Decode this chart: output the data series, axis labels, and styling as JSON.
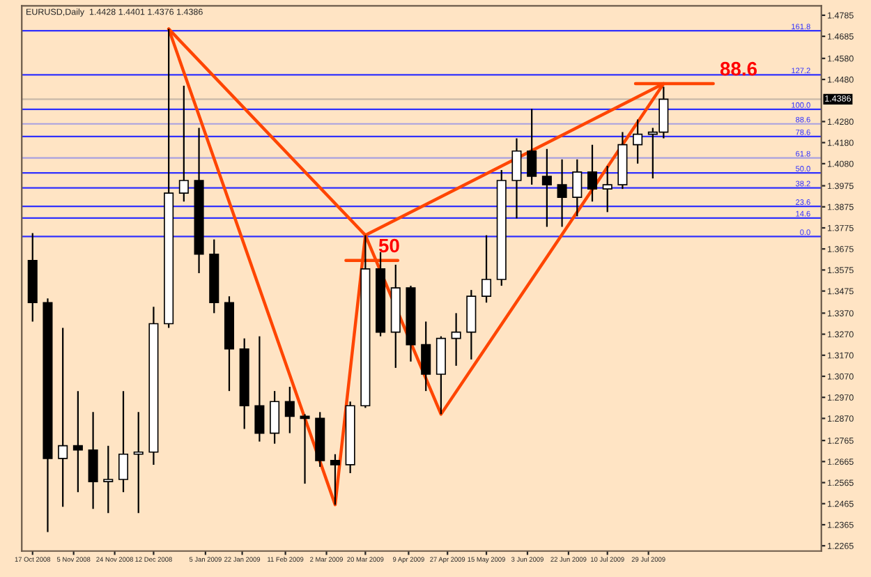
{
  "chart_data": {
    "type": "candlestick",
    "title": "EURUSD,Daily  1.4428 1.4401 1.4376 1.4386",
    "color": "#000000",
    "x": [
      "2008-10-17",
      "2008-10-24",
      "2008-10-31",
      "2008-11-07",
      "2008-11-14",
      "2008-11-21",
      "2008-11-28",
      "2008-12-05",
      "2008-12-12",
      "2008-12-19",
      "2008-12-26",
      "2009-01-02",
      "2009-01-09",
      "2009-01-16",
      "2009-01-23",
      "2009-01-30",
      "2009-02-06",
      "2009-02-13",
      "2009-02-20",
      "2009-02-27",
      "2009-03-06",
      "2009-03-13",
      "2009-03-20",
      "2009-03-27",
      "2009-04-03",
      "2009-04-10",
      "2009-04-17",
      "2009-04-24",
      "2009-05-01",
      "2009-05-08",
      "2009-05-15",
      "2009-05-22",
      "2009-05-29",
      "2009-06-05",
      "2009-06-12",
      "2009-06-19",
      "2009-06-26",
      "2009-07-03",
      "2009-07-10",
      "2009-07-17",
      "2009-07-24",
      "2009-07-31",
      "2009-08-05"
    ],
    "ohlc": [
      [
        1.362,
        1.375,
        1.333,
        1.342
      ],
      [
        1.342,
        1.344,
        1.233,
        1.268
      ],
      [
        1.268,
        1.33,
        1.245,
        1.274
      ],
      [
        1.274,
        1.3,
        1.252,
        1.272
      ],
      [
        1.272,
        1.29,
        1.244,
        1.257
      ],
      [
        1.257,
        1.274,
        1.242,
        1.258
      ],
      [
        1.258,
        1.3,
        1.252,
        1.27
      ],
      [
        1.27,
        1.29,
        1.242,
        1.271
      ],
      [
        1.271,
        1.34,
        1.265,
        1.332
      ],
      [
        1.332,
        1.472,
        1.33,
        1.394
      ],
      [
        1.394,
        1.445,
        1.39,
        1.4
      ],
      [
        1.4,
        1.425,
        1.356,
        1.365
      ],
      [
        1.365,
        1.372,
        1.337,
        1.342
      ],
      [
        1.342,
        1.345,
        1.3,
        1.32
      ],
      [
        1.32,
        1.325,
        1.282,
        1.293
      ],
      [
        1.293,
        1.326,
        1.276,
        1.28
      ],
      [
        1.28,
        1.3,
        1.275,
        1.295
      ],
      [
        1.295,
        1.302,
        1.28,
        1.288
      ],
      [
        1.288,
        1.289,
        1.256,
        1.287
      ],
      [
        1.287,
        1.29,
        1.264,
        1.267
      ],
      [
        1.267,
        1.27,
        1.246,
        1.265
      ],
      [
        1.265,
        1.295,
        1.261,
        1.293
      ],
      [
        1.293,
        1.374,
        1.292,
        1.358
      ],
      [
        1.358,
        1.366,
        1.326,
        1.328
      ],
      [
        1.328,
        1.36,
        1.311,
        1.349
      ],
      [
        1.349,
        1.35,
        1.314,
        1.322
      ],
      [
        1.322,
        1.333,
        1.3,
        1.308
      ],
      [
        1.308,
        1.326,
        1.289,
        1.325
      ],
      [
        1.325,
        1.337,
        1.312,
        1.328
      ],
      [
        1.328,
        1.348,
        1.315,
        1.345
      ],
      [
        1.345,
        1.374,
        1.342,
        1.353
      ],
      [
        1.353,
        1.405,
        1.35,
        1.4
      ],
      [
        1.4,
        1.42,
        1.382,
        1.414
      ],
      [
        1.414,
        1.434,
        1.398,
        1.402
      ],
      [
        1.402,
        1.415,
        1.378,
        1.398
      ],
      [
        1.398,
        1.41,
        1.378,
        1.392
      ],
      [
        1.392,
        1.41,
        1.383,
        1.404
      ],
      [
        1.404,
        1.417,
        1.39,
        1.396
      ],
      [
        1.396,
        1.407,
        1.385,
        1.398
      ],
      [
        1.398,
        1.423,
        1.396,
        1.417
      ],
      [
        1.417,
        1.429,
        1.408,
        1.422
      ],
      [
        1.422,
        1.425,
        1.401,
        1.423
      ],
      [
        1.423,
        1.4445,
        1.42,
        1.4386
      ]
    ],
    "series": [
      {
        "type": "line",
        "color": "#ff4500",
        "x": [
          "2008-12-19",
          "2009-03-06",
          "2009-03-20",
          "2009-04-24",
          "2009-08-05"
        ],
        "values": [
          1.472,
          1.246,
          1.374,
          1.289,
          1.446
        ]
      },
      {
        "type": "line",
        "color": "#ff4500",
        "x": [
          "2008-12-19",
          "2009-03-20",
          "2009-08-05"
        ],
        "values": [
          1.472,
          1.374,
          1.446
        ]
      },
      {
        "type": "line",
        "color": "#ff4500",
        "x": [
          "2009-03-11",
          "2009-04-04"
        ],
        "values": [
          1.362,
          1.362
        ]
      },
      {
        "type": "line",
        "color": "#ff4500",
        "x": [
          "2009-07-23",
          "2009-08-28"
        ],
        "values": [
          1.446,
          1.446
        ]
      }
    ],
    "annotations": [
      {
        "text": "50",
        "x": "2009-03-26",
        "y": 1.364
      },
      {
        "text": "88.6",
        "x": "2009-08-31",
        "y": 1.448
      },
      {
        "text": "161.8",
        "x": "2009-10-12",
        "y": 1.4711
      },
      {
        "text": "127.2",
        "x": "2009-10-12",
        "y": 1.4502
      },
      {
        "text": "100.0",
        "x": "2009-10-12",
        "y": 1.4338
      },
      {
        "text": "88.6",
        "x": "2009-10-12",
        "y": 1.4269
      },
      {
        "text": "78.6",
        "x": "2009-10-12",
        "y": 1.4209
      },
      {
        "text": "61.8",
        "x": "2009-10-12",
        "y": 1.4107
      },
      {
        "text": "50.0",
        "x": "2009-10-12",
        "y": 1.4036
      },
      {
        "text": "38.2",
        "x": "2009-10-12",
        "y": 1.3965
      },
      {
        "text": "23.6",
        "x": "2009-10-12",
        "y": 1.3877
      },
      {
        "text": "14.6",
        "x": "2009-10-12",
        "y": 1.3822
      },
      {
        "text": "0.0",
        "x": "2009-10-12",
        "y": 1.3734
      }
    ],
    "ref_lines": [
      {
        "axis": "y",
        "value": 1.4711,
        "color": "#3030ff"
      },
      {
        "axis": "y",
        "value": 1.4502,
        "color": "#3030ff"
      },
      {
        "axis": "y",
        "value": 1.4338,
        "color": "#3030ff"
      },
      {
        "axis": "y",
        "value": 1.4269,
        "color": "#a8a0e0"
      },
      {
        "axis": "y",
        "value": 1.4209,
        "color": "#3030ff"
      },
      {
        "axis": "y",
        "value": 1.4107,
        "color": "#a8a0e0"
      },
      {
        "axis": "y",
        "value": 1.4036,
        "color": "#3030ff"
      },
      {
        "axis": "y",
        "value": 1.3965,
        "color": "#3030ff"
      },
      {
        "axis": "y",
        "value": 1.3877,
        "color": "#3030ff"
      },
      {
        "axis": "y",
        "value": 1.3822,
        "color": "#3030ff"
      },
      {
        "axis": "y",
        "value": 1.3734,
        "color": "#3030ff"
      },
      {
        "axis": "y",
        "value": 1.4386,
        "label": "1.4386",
        "color": "#c8b8a8"
      }
    ],
    "xlim": [
      "2008-10-12",
      "2009-10-17"
    ],
    "xticks": [
      {
        "value": "2008-10-17",
        "label": "17 Oct 2008"
      },
      {
        "value": "2008-11-05",
        "label": "5 Nov 2008"
      },
      {
        "value": "2008-11-24",
        "label": "24 Nov 2008"
      },
      {
        "value": "2008-12-12",
        "label": "12 Dec 2008"
      },
      {
        "value": "2009-01-05",
        "label": "5 Jan 2009"
      },
      {
        "value": "2009-01-22",
        "label": "22 Jan 2009"
      },
      {
        "value": "2009-02-11",
        "label": "11 Feb 2009"
      },
      {
        "value": "2009-03-02",
        "label": "2 Mar 2009"
      },
      {
        "value": "2009-03-20",
        "label": "20 Mar 2009"
      },
      {
        "value": "2009-04-09",
        "label": "9 Apr 2009"
      },
      {
        "value": "2009-04-27",
        "label": "27 Apr 2009"
      },
      {
        "value": "2009-05-15",
        "label": "15 May 2009"
      },
      {
        "value": "2009-06-03",
        "label": "3 Jun 2009"
      },
      {
        "value": "2009-06-22",
        "label": "22 Jun 2009"
      },
      {
        "value": "2009-07-10",
        "label": "10 Jul 2009"
      },
      {
        "value": "2009-07-29",
        "label": "29 Jul 2009"
      }
    ],
    "ylim": [
      1.224,
      1.483
    ],
    "yticks": [
      1.4785,
      1.4685,
      {
        "value": 1.458,
        "label": "1.4580"
      },
      {
        "value": 1.448,
        "label": "1.4480"
      },
      {
        "value": 1.428,
        "label": "1.4280"
      },
      {
        "value": 1.418,
        "label": "1.4180"
      },
      {
        "value": 1.408,
        "label": "1.4080"
      },
      1.3975,
      1.3875,
      1.3775,
      1.3675,
      1.3575,
      1.3475,
      {
        "value": 1.337,
        "label": "1.3370"
      },
      {
        "value": 1.327,
        "label": "1.3270"
      },
      {
        "value": 1.317,
        "label": "1.3170"
      },
      {
        "value": 1.307,
        "label": "1.3070"
      },
      {
        "value": 1.297,
        "label": "1.2970"
      },
      {
        "value": 1.287,
        "label": "1.2870"
      },
      1.2765,
      1.2665,
      1.2565,
      1.2465,
      1.2365,
      1.2265
    ],
    "grid": false,
    "legend": false
  }
}
